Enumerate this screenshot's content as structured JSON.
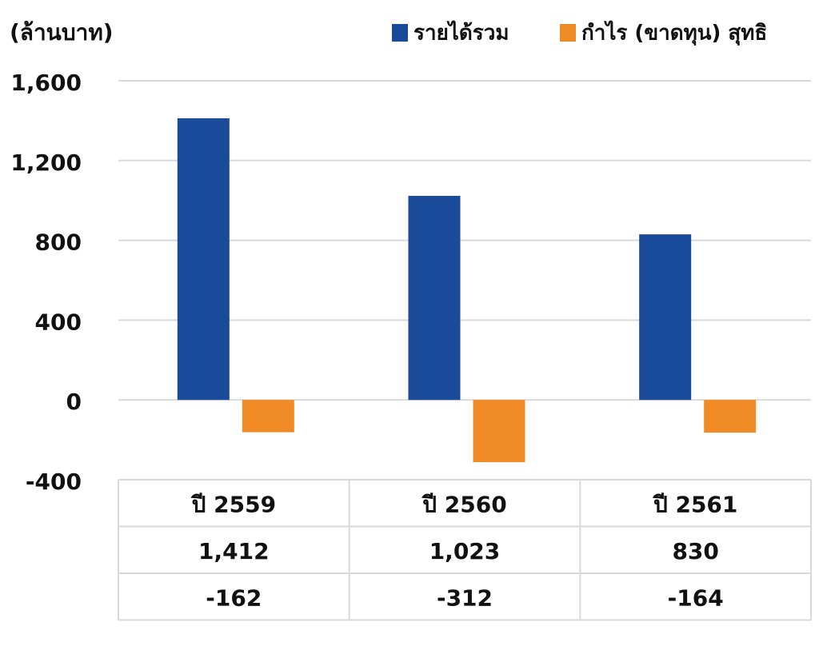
{
  "chart_data": {
    "type": "bar",
    "y_axis_label": "(ล้านบาท)",
    "categories": [
      "ปี 2559",
      "ปี 2560",
      "ปี 2561"
    ],
    "series": [
      {
        "name": "รายได้รวม",
        "color": "#1a4a9a",
        "values": [
          1412,
          1023,
          830
        ],
        "value_labels": [
          "1,412",
          "1,023",
          "830"
        ]
      },
      {
        "name": "กำไร (ขาดทุน) สุทธิ",
        "color": "#f08a24",
        "values": [
          -162,
          -312,
          -164
        ]
      }
    ],
    "ylim": [
      -400,
      1600
    ],
    "yticks": [
      -400,
      0,
      400,
      {
        "value": 800,
        "label": "800"
      },
      {
        "value": 1200,
        "label": "1,200"
      },
      {
        "value": 1600,
        "label": "1,600"
      }
    ],
    "grid": true,
    "legend": "top-right"
  }
}
